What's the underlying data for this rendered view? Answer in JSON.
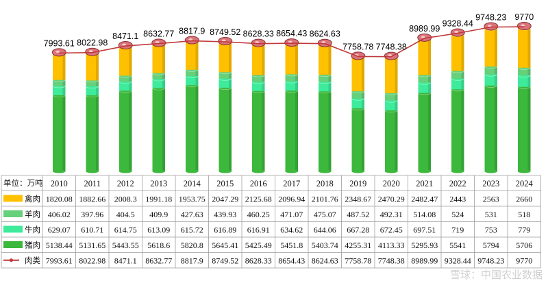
{
  "chart_data": {
    "type": "bar",
    "stacked": true,
    "with_line_overlay": true,
    "unit_label": "单位：万吨",
    "years": [
      "2010",
      "2011",
      "2012",
      "2013",
      "2014",
      "2015",
      "2016",
      "2017",
      "2018",
      "2019",
      "2020",
      "2021",
      "2022",
      "2023",
      "2024"
    ],
    "series": [
      {
        "name": "禽肉",
        "color": "#FFC000",
        "values": [
          1820.08,
          1882.66,
          2008.3,
          1991.18,
          1953.75,
          2047.29,
          2125.68,
          2096.94,
          2101.76,
          2348.67,
          2470.29,
          2482.47,
          2443,
          2563,
          2660
        ]
      },
      {
        "name": "羊肉",
        "color": "#66D07A",
        "values": [
          406.02,
          397.96,
          404.5,
          409.9,
          427.63,
          439.93,
          460.25,
          471.07,
          475.07,
          487.52,
          492.31,
          514.08,
          524,
          531,
          518
        ]
      },
      {
        "name": "牛肉",
        "color": "#3DEB9B",
        "values": [
          629.07,
          610.71,
          614.75,
          613.09,
          615.72,
          616.89,
          616.91,
          634.62,
          644.06,
          667.28,
          672.45,
          697.51,
          719,
          753,
          779
        ]
      },
      {
        "name": "猪肉",
        "color": "#3CB83C",
        "values": [
          5138.44,
          5131.65,
          5443.55,
          5618.6,
          5820.8,
          5645.41,
          5425.49,
          5451.8,
          5403.74,
          4255.31,
          4113.33,
          5295.93,
          5541,
          5794,
          5706
        ]
      }
    ],
    "line": {
      "name": "肉类",
      "color": "#C0393B",
      "values": [
        7993.61,
        8022.98,
        8471.1,
        8632.77,
        8817.9,
        8749.52,
        8628.33,
        8654.43,
        8624.63,
        7758.78,
        7748.38,
        8989.99,
        9328.44,
        9748.23,
        9770
      ]
    },
    "stack_order_bottom_to_top": [
      "猪肉",
      "牛肉",
      "羊肉",
      "禽肉"
    ],
    "table_row_order": [
      "禽肉",
      "羊肉",
      "牛肉",
      "猪肉",
      "肉类"
    ],
    "grid": false,
    "legend_placement": "data-table"
  },
  "watermark_text": "雪球：中国农业数据"
}
